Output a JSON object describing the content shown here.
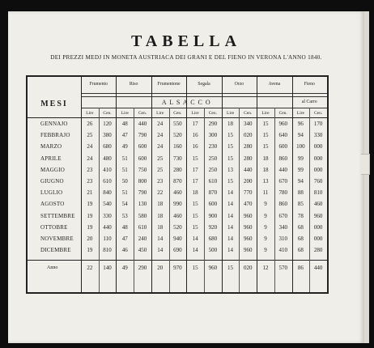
{
  "title": "TABELLA",
  "subtitle": "DEI PREZZI MEDJ IN MONETA AUSTRIACA DEI GRANI E DEL FIENO IN VERONA L'ANNO 1840.",
  "header": {
    "mesi": "MESI",
    "al_sacco": "A L   S A C C O",
    "al_carro": "al Carro",
    "grains": [
      "Frumento",
      "Riso",
      "Frumentone",
      "Segala",
      "Orzo",
      "Avena",
      "Fieno"
    ],
    "lire": "Lire",
    "cen": "Cen."
  },
  "rows": [
    {
      "month": "GENNAJO",
      "v": [
        "26",
        "120",
        "48",
        "440",
        "24",
        "550",
        "17",
        "290",
        "18",
        "340",
        "15",
        "960",
        "96",
        "170"
      ]
    },
    {
      "month": "FEBBRAJO",
      "v": [
        "25",
        "380",
        "47",
        "790",
        "24",
        "520",
        "16",
        "300",
        "15",
        "020",
        "15",
        "640",
        "94",
        "330"
      ]
    },
    {
      "month": "MARZO",
      "v": [
        "24",
        "680",
        "49",
        "600",
        "24",
        "160",
        "16",
        "230",
        "15",
        "280",
        "15",
        "600",
        "100",
        "000"
      ]
    },
    {
      "month": "APRILE",
      "v": [
        "24",
        "480",
        "51",
        "600",
        "25",
        "730",
        "15",
        "250",
        "15",
        "280",
        "18",
        "860",
        "99",
        "000"
      ]
    },
    {
      "month": "MAGGIO",
      "v": [
        "23",
        "410",
        "51",
        "750",
        "25",
        "280",
        "17",
        "250",
        "13",
        "440",
        "18",
        "440",
        "99",
        "000"
      ]
    },
    {
      "month": "GIUGNO",
      "v": [
        "23",
        "610",
        "50",
        "800",
        "23",
        "870",
        "17",
        "610",
        "15",
        "200",
        "13",
        "670",
        "94",
        "760"
      ]
    },
    {
      "month": "LUGLIO",
      "v": [
        "21",
        "840",
        "51",
        "790",
        "22",
        "460",
        "18",
        "870",
        "14",
        "770",
        "11",
        "780",
        "88",
        "810"
      ]
    },
    {
      "month": "AGOSTO",
      "v": [
        "19",
        "540",
        "54",
        "130",
        "18",
        "990",
        "15",
        "600",
        "14",
        "470",
        "9",
        "860",
        "85",
        "460"
      ]
    },
    {
      "month": "SETTEMBRE",
      "v": [
        "19",
        "330",
        "53",
        "580",
        "18",
        "460",
        "15",
        "900",
        "14",
        "960",
        "9",
        "670",
        "78",
        "960"
      ]
    },
    {
      "month": "OTTOBRE",
      "v": [
        "19",
        "440",
        "48",
        "610",
        "18",
        "520",
        "15",
        "920",
        "14",
        "960",
        "9",
        "340",
        "68",
        "000"
      ]
    },
    {
      "month": "NOVEMBRE",
      "v": [
        "20",
        "110",
        "47",
        "240",
        "14",
        "940",
        "14",
        "680",
        "14",
        "960",
        "9",
        "310",
        "68",
        "000"
      ]
    },
    {
      "month": "DICEMBRE",
      "v": [
        "19",
        "810",
        "46",
        "450",
        "14",
        "690",
        "14",
        "500",
        "14",
        "960",
        "9",
        "410",
        "68",
        "280"
      ]
    }
  ],
  "anno": {
    "label": "Anno",
    "v": [
      "22",
      "140",
      "49",
      "290",
      "20",
      "970",
      "15",
      "960",
      "15",
      "020",
      "12",
      "570",
      "86",
      "440"
    ]
  }
}
